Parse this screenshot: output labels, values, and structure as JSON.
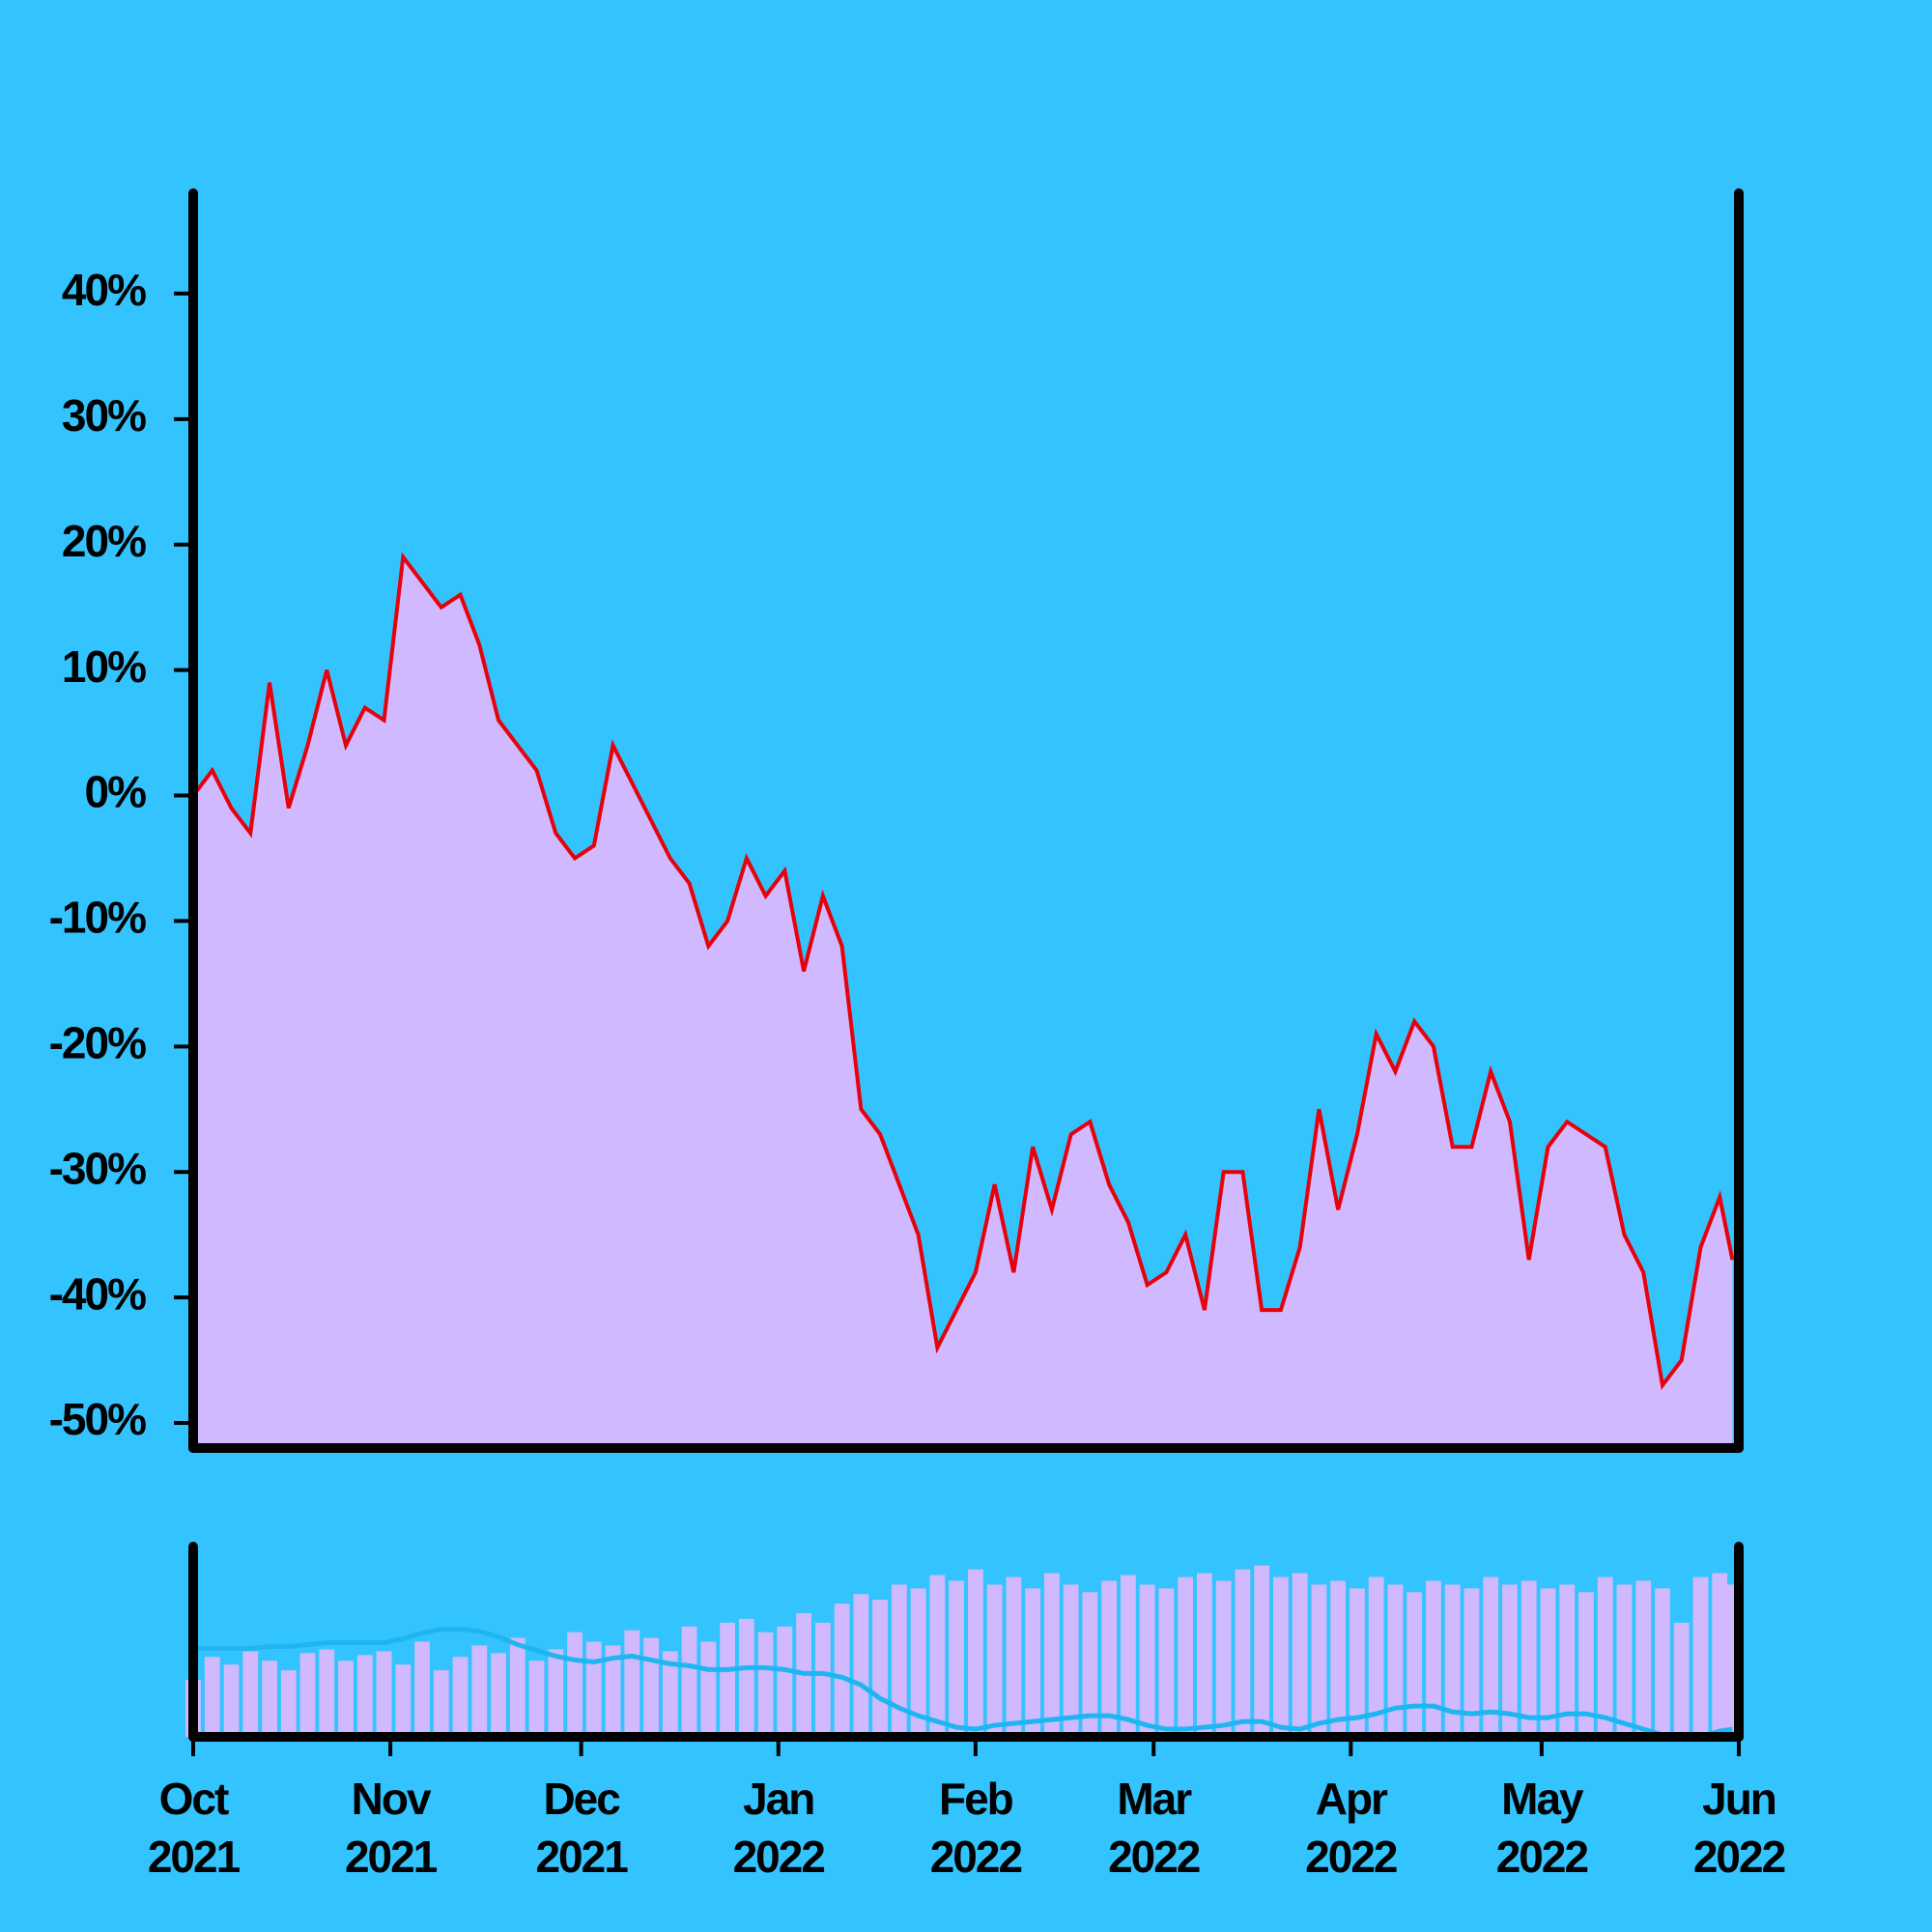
{
  "chart_data": {
    "type": "area",
    "x": [
      "2021-10-01",
      "2021-10-04",
      "2021-10-07",
      "2021-10-10",
      "2021-10-13",
      "2021-10-16",
      "2021-10-19",
      "2021-10-22",
      "2021-10-25",
      "2021-10-28",
      "2021-10-31",
      "2021-11-03",
      "2021-11-06",
      "2021-11-09",
      "2021-11-12",
      "2021-11-15",
      "2021-11-18",
      "2021-11-21",
      "2021-11-24",
      "2021-11-27",
      "2021-11-30",
      "2021-12-03",
      "2021-12-06",
      "2021-12-09",
      "2021-12-12",
      "2021-12-15",
      "2021-12-18",
      "2021-12-21",
      "2021-12-24",
      "2021-12-27",
      "2021-12-30",
      "2022-01-02",
      "2022-01-05",
      "2022-01-08",
      "2022-01-11",
      "2022-01-14",
      "2022-01-17",
      "2022-01-20",
      "2022-01-23",
      "2022-01-26",
      "2022-01-29",
      "2022-02-01",
      "2022-02-04",
      "2022-02-07",
      "2022-02-10",
      "2022-02-13",
      "2022-02-16",
      "2022-02-19",
      "2022-02-22",
      "2022-02-25",
      "2022-02-28",
      "2022-03-03",
      "2022-03-06",
      "2022-03-09",
      "2022-03-12",
      "2022-03-15",
      "2022-03-18",
      "2022-03-21",
      "2022-03-24",
      "2022-03-27",
      "2022-03-30",
      "2022-04-02",
      "2022-04-05",
      "2022-04-08",
      "2022-04-11",
      "2022-04-14",
      "2022-04-17",
      "2022-04-20",
      "2022-04-23",
      "2022-04-26",
      "2022-04-29",
      "2022-05-02",
      "2022-05-05",
      "2022-05-08",
      "2022-05-11",
      "2022-05-14",
      "2022-05-17",
      "2022-05-20",
      "2022-05-23",
      "2022-05-26",
      "2022-05-29",
      "2022-05-31"
    ],
    "values": [
      0,
      2,
      -1,
      -3,
      9,
      -1,
      4,
      10,
      4,
      7,
      6,
      19,
      17,
      15,
      16,
      12,
      6,
      4,
      2,
      -3,
      -5,
      -4,
      4,
      1,
      -2,
      -5,
      -7,
      -12,
      -10,
      -5,
      -8,
      -6,
      -14,
      -8,
      -12,
      -25,
      -27,
      -31,
      -35,
      -44,
      -41,
      -38,
      -31,
      -38,
      -28,
      -33,
      -27,
      -26,
      -31,
      -34,
      -39,
      -38,
      -35,
      -41,
      -30,
      -30,
      -41,
      -41,
      -36,
      -25,
      -33,
      -27,
      -19,
      -22,
      -18,
      -20,
      -28,
      -28,
      -22,
      -26,
      -37,
      -28,
      -26,
      -27,
      -28,
      -35,
      -38,
      -47,
      -45,
      -36,
      -32,
      -37
    ],
    "color": "#d1b9ff",
    "line_color": "#e8000b",
    "volume": [
      30,
      42,
      38,
      45,
      40,
      35,
      44,
      46,
      40,
      43,
      45,
      38,
      50,
      35,
      42,
      48,
      44,
      52,
      40,
      46,
      55,
      50,
      48,
      56,
      52,
      45,
      58,
      50,
      60,
      62,
      55,
      58,
      65,
      60,
      70,
      75,
      72,
      80,
      78,
      85,
      82,
      88,
      80,
      84,
      78,
      86,
      80,
      76,
      82,
      85,
      80,
      78,
      84,
      86,
      82,
      88,
      90,
      84,
      86,
      80,
      82,
      78,
      84,
      80,
      76,
      82,
      80,
      78,
      84,
      80,
      82,
      78,
      80,
      76,
      84,
      80,
      82,
      78,
      60,
      84,
      86,
      80
    ],
    "volume_ylim": [
      0,
      100
    ],
    "volume_color": "#d1b9ff",
    "ma": [
      4,
      4,
      4,
      4,
      5,
      5,
      6,
      7,
      7,
      7,
      7,
      9,
      12,
      14,
      14,
      13,
      10,
      6,
      3,
      0,
      -2,
      -3,
      -1,
      0,
      -2,
      -4,
      -5,
      -7,
      -7,
      -6,
      -6,
      -7,
      -9,
      -9,
      -11,
      -15,
      -22,
      -27,
      -31,
      -34,
      -37,
      -38,
      -36,
      -35,
      -34,
      -33,
      -32,
      -31,
      -31,
      -33,
      -36,
      -38,
      -38,
      -37,
      -36,
      -34,
      -34,
      -37,
      -38,
      -35,
      -33,
      -32,
      -30,
      -27,
      -26,
      -26,
      -29,
      -30,
      -29,
      -30,
      -32,
      -32,
      -30,
      -30,
      -32,
      -35,
      -38,
      -41,
      -42,
      -42,
      -39,
      -38
    ],
    "ma_lim": [
      -42,
      57
    ],
    "ma_color": "#1fb5f0",
    "xlim": [
      "2021-10-01",
      "2022-06-01"
    ],
    "xticks": [
      {
        "value": "2021-10-01",
        "label": [
          "Oct",
          "2021"
        ]
      },
      {
        "value": "2021-11-01",
        "label": [
          "Nov",
          "2021"
        ]
      },
      {
        "value": "2021-12-01",
        "label": [
          "Dec",
          "2021"
        ]
      },
      {
        "value": "2022-01-01",
        "label": [
          "Jan",
          "2022"
        ]
      },
      {
        "value": "2022-02-01",
        "label": [
          "Feb",
          "2022"
        ]
      },
      {
        "value": "2022-03-01",
        "label": [
          "Mar",
          "2022"
        ]
      },
      {
        "value": "2022-04-01",
        "label": [
          "Apr",
          "2022"
        ]
      },
      {
        "value": "2022-05-01",
        "label": [
          "May",
          "2022"
        ]
      },
      {
        "value": "2022-06-01",
        "label": [
          "Jun",
          "2022"
        ]
      }
    ],
    "ylim": [
      -52,
      48
    ],
    "yticks": [
      {
        "value": -50,
        "label": "-50%"
      },
      {
        "value": -40,
        "label": "-40%"
      },
      {
        "value": -30,
        "label": "-30%"
      },
      {
        "value": -20,
        "label": "-20%"
      },
      {
        "value": -10,
        "label": "-10%"
      },
      {
        "value": 0,
        "label": "0%"
      },
      {
        "value": 10,
        "label": "10%"
      },
      {
        "value": 20,
        "label": "20%"
      },
      {
        "value": 30,
        "label": "30%"
      },
      {
        "value": 40,
        "label": "40%"
      }
    ],
    "background": "#33c4ff"
  }
}
